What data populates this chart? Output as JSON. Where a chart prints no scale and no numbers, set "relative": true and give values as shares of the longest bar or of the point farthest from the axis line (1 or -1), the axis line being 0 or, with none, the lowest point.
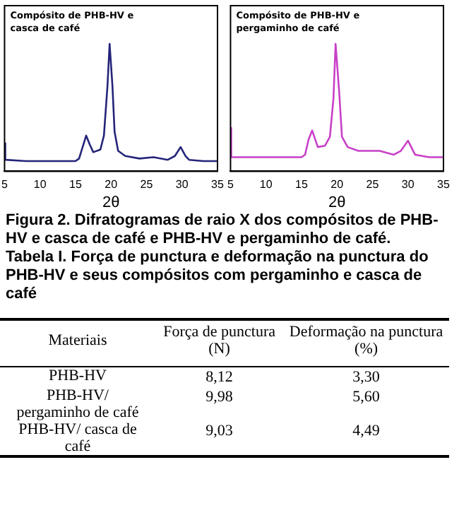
{
  "chart_data": [
    {
      "type": "line",
      "relative": true,
      "xlabel": "2θ",
      "annotations": [
        "Compósito de PHB-HV e casca de café"
      ],
      "xlim": [
        5,
        35
      ],
      "xticks": [
        5,
        10,
        15,
        20,
        25,
        30,
        35
      ],
      "tick_labels": "x",
      "grid": false,
      "legend": false,
      "marker": "none",
      "series": [
        {
          "color": "#25257a",
          "x": [
            5,
            5.1,
            8,
            12,
            15,
            15.5,
            16,
            16.5,
            17,
            17.5,
            18.5,
            19,
            19.5,
            19.8,
            20.2,
            20.5,
            21,
            22,
            24,
            26,
            28,
            29,
            29.8,
            30.5,
            31,
            33,
            35
          ],
          "values": [
            0.22,
            0.09,
            0.08,
            0.08,
            0.08,
            0.1,
            0.19,
            0.28,
            0.21,
            0.15,
            0.17,
            0.28,
            0.67,
            1,
            0.67,
            0.31,
            0.16,
            0.12,
            0.1,
            0.11,
            0.09,
            0.12,
            0.19,
            0.12,
            0.09,
            0.08,
            0.08
          ]
        }
      ]
    },
    {
      "type": "line",
      "relative": true,
      "xlabel": "2θ",
      "annotations": [
        "Compósito de PHB-HV e pergaminho de café",
        "Figura 2. Difratogramas de raio X dos compósitos de PHB-HV e casca de café e PHB-HV e pergaminho de café."
      ],
      "xlim": [
        5,
        35
      ],
      "xticks": [
        5,
        10,
        15,
        20,
        25,
        30,
        35
      ],
      "tick_labels": "x",
      "grid": false,
      "legend": false,
      "marker": "none",
      "series": [
        {
          "color": "#c840c8",
          "x": [
            5,
            5.1,
            8,
            12,
            15,
            15.5,
            16,
            16.5,
            17.3,
            18.3,
            19,
            19.5,
            19.8,
            20.3,
            20.7,
            21.5,
            23,
            26,
            28,
            29,
            30,
            31,
            33,
            35
          ],
          "values": [
            0.34,
            0.11,
            0.11,
            0.11,
            0.11,
            0.13,
            0.25,
            0.32,
            0.19,
            0.2,
            0.27,
            0.57,
            1,
            0.63,
            0.27,
            0.19,
            0.16,
            0.16,
            0.13,
            0.16,
            0.24,
            0.13,
            0.11,
            0.11
          ]
        }
      ]
    },
    {
      "type": "other",
      "title": "Tabela I. Força de punctura e deformação na punctura do PHB-HV e seus compósitos com pergaminho e casca de café",
      "xlabel": "Materiais",
      "categories": [
        "PHB-HV",
        "PHB-HV/ pergaminho de café",
        "PHB-HV/ casca de café"
      ],
      "series": [
        {
          "name": "Força de punctura (N)",
          "values": [
            8.12,
            9.98,
            9.03
          ],
          "value_labels": [
            "8,12",
            "9,98",
            "9,03"
          ]
        },
        {
          "name": "Deformação na punctura (%)",
          "values": [
            3.3,
            5.6,
            4.49
          ],
          "value_labels": [
            "3,30",
            "5,60",
            "4,49"
          ]
        }
      ]
    }
  ]
}
